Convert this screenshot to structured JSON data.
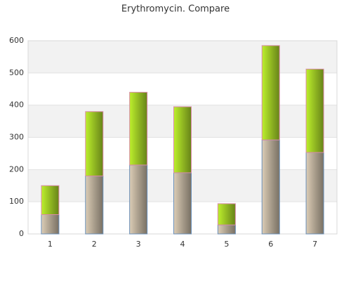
{
  "chart_data": {
    "type": "stacked_bar",
    "title": "Erythromycin. Compare",
    "categories": [
      "1",
      "2",
      "3",
      "4",
      "5",
      "6",
      "7"
    ],
    "series": [
      {
        "color": "#dccdb6",
        "values": [
          60,
          180,
          214,
          190,
          28,
          292,
          253
        ]
      },
      {
        "color": "#bdf02c",
        "values": [
          90,
          200,
          226,
          205,
          66,
          293,
          259
        ]
      }
    ],
    "ylim": [
      0,
      600
    ],
    "yticks": [
      0,
      100,
      200,
      300,
      400,
      500,
      600
    ],
    "grid": true
  }
}
